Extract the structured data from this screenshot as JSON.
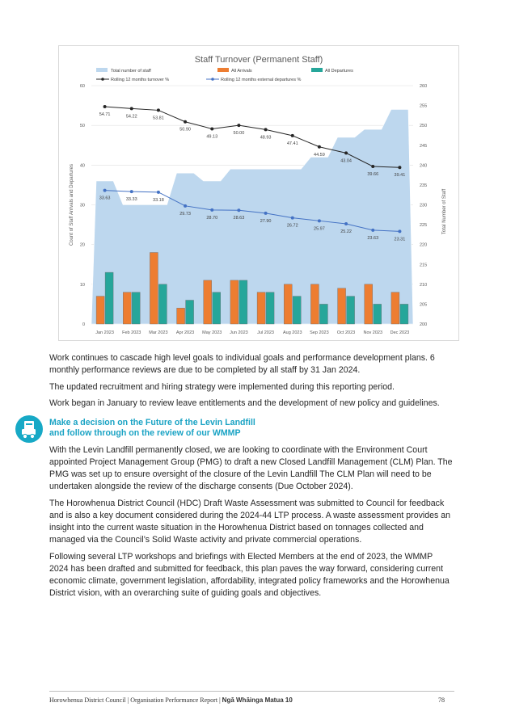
{
  "chart_data": {
    "type": "combo",
    "title": "Staff Turnover (Permanent Staff)",
    "categories": [
      "Jan 2023",
      "Feb 2023",
      "Mar 2023",
      "Apr 2023",
      "May 2023",
      "Jun 2023",
      "Jul 2023",
      "Aug 2023",
      "Sep 2023",
      "Oct 2023",
      "Nov 2023",
      "Dec 2023"
    ],
    "ylabel_left": "Count of Staff Arrivals and Departures",
    "ylabel_right": "Total Number of Staff",
    "ylim_left": [
      0,
      60
    ],
    "ylim_right": [
      200,
      260
    ],
    "yticks_left": [
      "0",
      "10",
      "20",
      "30",
      "40",
      "50",
      "60"
    ],
    "yticks_right": [
      "200",
      "205",
      "210",
      "215",
      "220",
      "225",
      "230",
      "235",
      "240",
      "245",
      "250",
      "255",
      "260"
    ],
    "legend": {
      "total": "Total number of staff",
      "arrivals": "All Arrivals",
      "departures": "All Departures",
      "turnover": "Rolling 12 months turnover %",
      "external": "Rolling 12 months external departures %"
    },
    "series": [
      {
        "name": "Total number of staff",
        "kind": "area",
        "axis": "right",
        "color": "#bdd7ee",
        "values": [
          236,
          230,
          230,
          238,
          236,
          239,
          239,
          239,
          242,
          247,
          249,
          254
        ]
      },
      {
        "name": "All Arrivals",
        "kind": "bar",
        "axis": "left",
        "color": "#ed7d31",
        "values": [
          7,
          8,
          18,
          4,
          11,
          11,
          8,
          10,
          10,
          9,
          10,
          8
        ]
      },
      {
        "name": "All Departures",
        "kind": "bar",
        "axis": "left",
        "color": "#26a69a",
        "values": [
          13,
          8,
          10,
          6,
          8,
          11,
          8,
          7,
          5,
          7,
          5,
          5
        ]
      },
      {
        "name": "Rolling 12 months turnover %",
        "kind": "line",
        "axis": "left",
        "color": "#262626",
        "values": [
          54.71,
          54.22,
          53.81,
          50.9,
          49.13,
          50.0,
          48.93,
          47.41,
          44.59,
          43.04,
          39.66,
          39.41
        ],
        "labels": [
          "54.71",
          "54.22",
          "53.81",
          "50.90",
          "49.13",
          "50.00",
          "48.93",
          "47.41",
          "44.59",
          "43.04",
          "39.66",
          "39.41"
        ]
      },
      {
        "name": "Rolling 12 months external departures %",
        "kind": "line",
        "axis": "left",
        "color": "#4472c4",
        "values": [
          33.63,
          33.33,
          33.18,
          29.73,
          28.7,
          28.63,
          27.9,
          26.72,
          25.97,
          25.22,
          23.63,
          23.31
        ],
        "labels": [
          "33.63",
          "33.33",
          "33.18",
          "29.73",
          "28.70",
          "28.63",
          "27.90",
          "26.72",
          "25.97",
          "25.22",
          "23.63",
          "23.31"
        ]
      }
    ],
    "colors": {
      "grid": "#e0e0e0",
      "axis_text": "#595959",
      "area_edge": "#ffffff"
    }
  },
  "body": {
    "p1": "Work continues to cascade high level goals to individual goals and performance development plans. 6 monthly performance reviews are due to be completed by all staff by 31 Jan 2024.",
    "p2": "The updated recruitment and hiring strategy were implemented during this reporting period.",
    "p3": "Work began in January to review leave entitlements and the development of new policy and guidelines.",
    "section_title_line1": "Make a decision on the Future of the Levin Landfill",
    "section_title_line2": "and follow through on the review of our WMMP",
    "section_icon": "landfill-truck-icon",
    "p4": "With the Levin Landfill permanently closed, we are looking to coordinate with the Environment Court appointed Project Management Group (PMG) to draft a new Closed Landfill Management (CLM) Plan. The PMG was set up to ensure oversight of the closure of the Levin Landfill The CLM Plan will need to be undertaken alongside the review of the discharge consents (Due October 2024).",
    "p5": "The Horowhenua District Council (HDC) Draft Waste Assessment was submitted to Council for feedback and is also a key document considered during the 2024-44 LTP process. A waste assessment provides an insight into the current waste situation in the Horowhenua District based on tonnages collected and managed via the Council’s Solid Waste activity and private commercial operations.",
    "p6": "Following several LTP workshops and briefings with Elected Members at the end of 2023, the WMMP 2024 has been drafted and submitted for feedback, this plan paves the way forward, considering current economic climate, government legislation, affordability, integrated policy frameworks and the Horowhenua District vision, with an overarching suite of guiding goals and objectives."
  },
  "footer": {
    "text": "Horowhenua District Council | Organisation Performance Report |",
    "bold": "Ngā Whāinga Matua 10",
    "page": "78"
  }
}
